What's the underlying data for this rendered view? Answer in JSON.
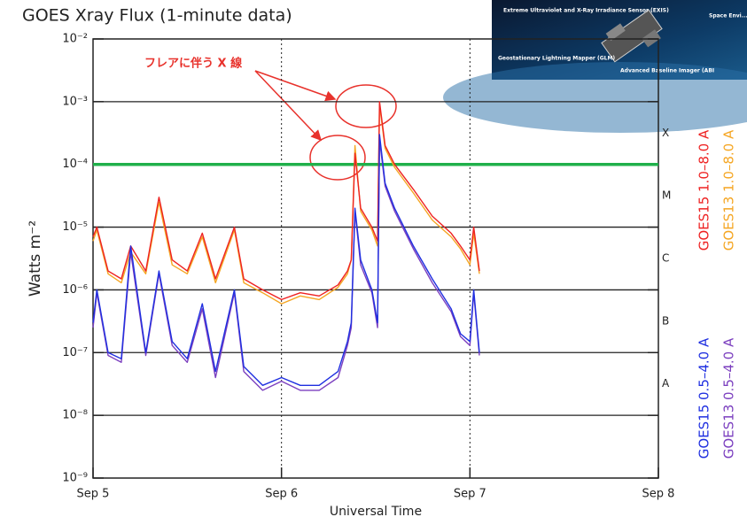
{
  "chart_data": {
    "type": "line",
    "title": "GOES Xray Flux (1-minute data)",
    "y_label": "Watts m⁻²",
    "x_label": "Universal Time",
    "log_y": true,
    "grid": true,
    "xlim": [
      0,
      3
    ],
    "xticks": [
      {
        "value": 0,
        "label": "Sep 5"
      },
      {
        "value": 1,
        "label": "Sep 6"
      },
      {
        "value": 2,
        "label": "Sep 7"
      },
      {
        "value": 3,
        "label": "Sep 8"
      }
    ],
    "ylim": [
      1e-09,
      0.01
    ],
    "yticks": [
      {
        "value": 1e-09,
        "label": "10⁻⁹"
      },
      {
        "value": 1e-08,
        "label": "10⁻⁸"
      },
      {
        "value": 1e-07,
        "label": "10⁻⁷"
      },
      {
        "value": 1e-06,
        "label": "10⁻⁶"
      },
      {
        "value": 1e-05,
        "label": "10⁻⁵"
      },
      {
        "value": 0.0001,
        "label": "10⁻⁴"
      },
      {
        "value": 0.001,
        "label": "10⁻³"
      },
      {
        "value": 0.01,
        "label": "10⁻²"
      }
    ],
    "threshold": 0.0001,
    "threshold_color": "#1fb04a",
    "flare_classes": [
      {
        "label": "X",
        "value": 0.0001
      },
      {
        "label": "M",
        "value": 1e-05
      },
      {
        "label": "C",
        "value": 1e-06
      },
      {
        "label": "B",
        "value": 1e-07
      },
      {
        "label": "A",
        "value": 1e-08
      }
    ],
    "x": [
      0,
      0.02,
      0.08,
      0.15,
      0.2,
      0.28,
      0.35,
      0.42,
      0.5,
      0.58,
      0.65,
      0.75,
      0.8,
      0.9,
      1.0,
      1.1,
      1.2,
      1.3,
      1.35,
      1.37,
      1.39,
      1.42,
      1.48,
      1.51,
      1.52,
      1.55,
      1.6,
      1.7,
      1.8,
      1.9,
      1.95,
      2.0,
      2.02,
      2.05
    ],
    "series": [
      {
        "name": "GOES13 1.0–8.0 A",
        "color": "#f5a623",
        "values": [
          6e-06,
          9e-06,
          1.8e-06,
          1.3e-06,
          4e-06,
          1.8e-06,
          2.5e-05,
          2.5e-06,
          1.8e-06,
          7e-06,
          1.3e-06,
          9e-06,
          1.3e-06,
          9e-07,
          6e-07,
          8e-07,
          7e-07,
          1.1e-06,
          1.8e-06,
          3e-06,
          0.0002,
          1.8e-05,
          9e-06,
          5e-06,
          0.0009,
          0.00018,
          9e-05,
          3.5e-05,
          1.3e-05,
          7e-06,
          4.5e-06,
          2.5e-06,
          8e-06,
          1.8e-06
        ]
      },
      {
        "name": "GOES15 1.0–8.0 A",
        "color": "#ee2222",
        "values": [
          7e-06,
          1e-05,
          2e-06,
          1.5e-06,
          5e-06,
          2e-06,
          3e-05,
          3e-06,
          2e-06,
          8e-06,
          1.5e-06,
          1e-05,
          1.5e-06,
          1e-06,
          7e-07,
          9e-07,
          8e-07,
          1.2e-06,
          2e-06,
          3e-06,
          0.00015,
          2e-05,
          1e-05,
          6e-06,
          0.001,
          0.0002,
          0.0001,
          4e-05,
          1.5e-05,
          8e-06,
          5e-06,
          3e-06,
          1e-05,
          2e-06
        ]
      },
      {
        "name": "GOES13 0.5–4.0 A",
        "color": "#7b3fbf",
        "values": [
          2.5e-07,
          9e-07,
          9e-08,
          7e-08,
          4e-06,
          9e-08,
          1.8e-06,
          1.3e-07,
          7e-08,
          5e-07,
          4e-08,
          9e-07,
          5e-08,
          2.5e-08,
          3.5e-08,
          2.5e-08,
          2.5e-08,
          4e-08,
          1.3e-07,
          2.5e-07,
          1.8e-05,
          2.5e-06,
          9e-07,
          2.5e-07,
          0.00025,
          4.5e-05,
          1.8e-05,
          4.5e-06,
          1.3e-06,
          4.5e-07,
          1.8e-07,
          1.3e-07,
          9e-07,
          9e-08
        ]
      },
      {
        "name": "GOES15 0.5–4.0 A",
        "color": "#1f2fe0",
        "values": [
          3e-07,
          1e-06,
          1e-07,
          8e-08,
          5e-06,
          1e-07,
          2e-06,
          1.5e-07,
          8e-08,
          6e-07,
          5e-08,
          1e-06,
          6e-08,
          3e-08,
          4e-08,
          3e-08,
          3e-08,
          5e-08,
          1.5e-07,
          3e-07,
          2e-05,
          3e-06,
          1e-06,
          3e-07,
          0.0003,
          5e-05,
          2e-05,
          5e-06,
          1.5e-06,
          5e-07,
          2e-07,
          1.5e-07,
          1e-06,
          1e-07
        ]
      }
    ],
    "annotation": "フレアに伴う X 線",
    "inset_labels": [
      "Extreme Ultraviolet and X-Ray Irradiance Sensor (EXIS)",
      "Space Envi... In-Situ Sui...",
      "Geostationary Lightning Mapper (GLM)",
      "Advanced Baseline Imager (ABI"
    ]
  }
}
